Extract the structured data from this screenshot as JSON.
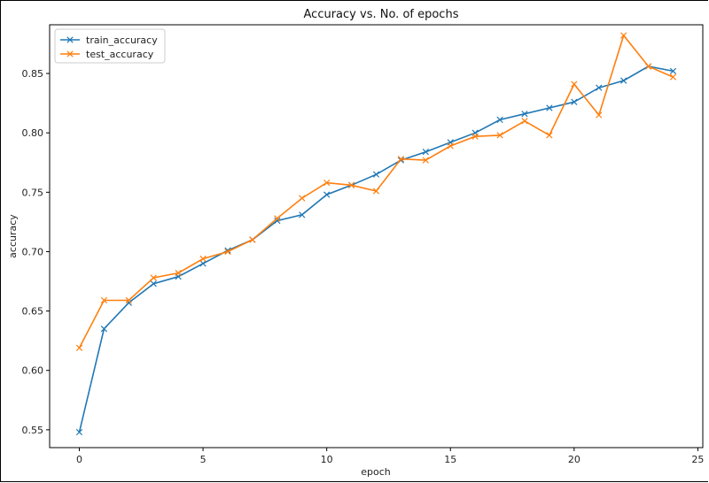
{
  "chart_data": {
    "type": "line",
    "title": "Accuracy vs. No. of epochs",
    "xlabel": "epoch",
    "ylabel": "accuracy",
    "xlim": [
      -1.2,
      25.2
    ],
    "ylim": [
      0.535,
      0.891
    ],
    "xticks": [
      0,
      5,
      10,
      15,
      20,
      25
    ],
    "yticks": [
      0.55,
      0.6,
      0.65,
      0.7,
      0.75,
      0.8,
      0.85
    ],
    "ytick_labels": [
      "0.55",
      "0.60",
      "0.65",
      "0.70",
      "0.75",
      "0.80",
      "0.85"
    ],
    "grid": false,
    "legend_position": "top-left",
    "x": [
      0,
      1,
      2,
      3,
      4,
      5,
      6,
      7,
      8,
      9,
      10,
      11,
      12,
      13,
      14,
      15,
      16,
      17,
      18,
      19,
      20,
      21,
      22,
      23,
      24
    ],
    "series": [
      {
        "name": "train_accuracy",
        "color": "#1f77b4",
        "marker": "x",
        "values": [
          0.548,
          0.635,
          0.657,
          0.673,
          0.679,
          0.69,
          0.701,
          0.71,
          0.726,
          0.731,
          0.748,
          0.756,
          0.765,
          0.777,
          0.784,
          0.792,
          0.8,
          0.811,
          0.816,
          0.821,
          0.826,
          0.838,
          0.844,
          0.856,
          0.852
        ]
      },
      {
        "name": "test_accuracy",
        "color": "#ff7f0e",
        "marker": "x",
        "values": [
          0.619,
          0.659,
          0.659,
          0.678,
          0.682,
          0.694,
          0.7,
          0.71,
          0.728,
          0.745,
          0.758,
          0.756,
          0.751,
          0.778,
          0.777,
          0.789,
          0.797,
          0.798,
          0.81,
          0.798,
          0.841,
          0.815,
          0.882,
          0.856,
          0.847
        ]
      }
    ]
  }
}
